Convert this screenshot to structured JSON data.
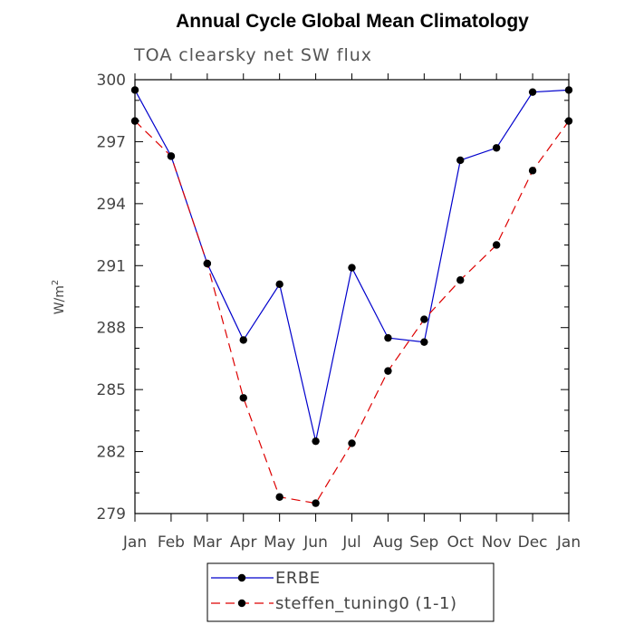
{
  "chart_data": {
    "type": "line",
    "title": "Annual Cycle Global Mean Climatology",
    "subtitle": "TOA clearsky net SW flux",
    "ylabel": "W/m",
    "ylabel_superscript": "2",
    "xlabel": "",
    "ylim": [
      279,
      300
    ],
    "yticks": [
      "279",
      "282",
      "285",
      "288",
      "291",
      "294",
      "297",
      "300"
    ],
    "categories": [
      "Jan",
      "Feb",
      "Mar",
      "Apr",
      "May",
      "Jun",
      "Jul",
      "Aug",
      "Sep",
      "Oct",
      "Nov",
      "Dec",
      "Jan"
    ],
    "grid": false,
    "legend_position": "bottom-center",
    "series": [
      {
        "name": "ERBE",
        "color": "#0000cc",
        "dash": "solid",
        "marker": "filled-circle",
        "values": [
          299.5,
          296.3,
          291.1,
          287.4,
          290.1,
          282.5,
          290.9,
          287.5,
          287.3,
          296.1,
          296.7,
          299.4,
          299.5
        ]
      },
      {
        "name": "steffen_tuning0 (1-1)",
        "color": "#dd0000",
        "dash": "dashed",
        "marker": "filled-circle",
        "values": [
          298.0,
          296.3,
          291.1,
          284.6,
          279.8,
          279.5,
          282.4,
          285.9,
          288.4,
          290.3,
          292.0,
          295.6,
          298.0
        ]
      }
    ]
  }
}
